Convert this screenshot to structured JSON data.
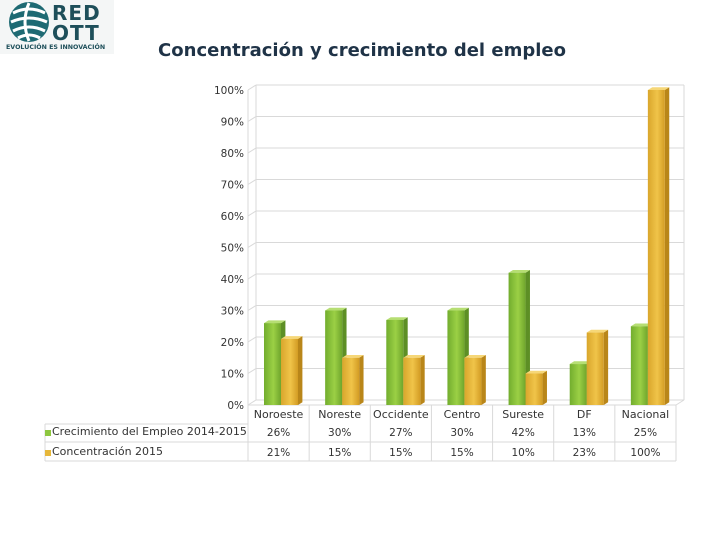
{
  "logo": {
    "line1": "RED",
    "line2": "OTT",
    "tagline": "EVOLUCIÓN ES INNOVACIÓN"
  },
  "colors": {
    "green": "#8dc63f",
    "gold": "#e6b73a",
    "grid": "#d9d9d9",
    "text": "#333333"
  },
  "chart_data": {
    "type": "bar",
    "title": "Concentración y crecimiento del empleo",
    "categories": [
      "Noroeste",
      "Noreste",
      "Occidente",
      "Centro",
      "Sureste",
      "DF",
      "Nacional"
    ],
    "series": [
      {
        "name": "Crecimiento del Empleo 2014-2015",
        "values": [
          26,
          30,
          27,
          30,
          42,
          13,
          25
        ],
        "labels": [
          "26%",
          "30%",
          "27%",
          "30%",
          "42%",
          "13%",
          "25%"
        ]
      },
      {
        "name": "Concentración 2015",
        "values": [
          21,
          15,
          15,
          15,
          10,
          23,
          100
        ],
        "labels": [
          "21%",
          "15%",
          "15%",
          "15%",
          "10%",
          "23%",
          "100%"
        ]
      }
    ],
    "yticks": [
      "0%",
      "10%",
      "20%",
      "30%",
      "40%",
      "50%",
      "60%",
      "70%",
      "80%",
      "90%",
      "100%"
    ],
    "ylim": [
      0,
      100
    ],
    "legend": "bottom-left table",
    "grid": true
  }
}
